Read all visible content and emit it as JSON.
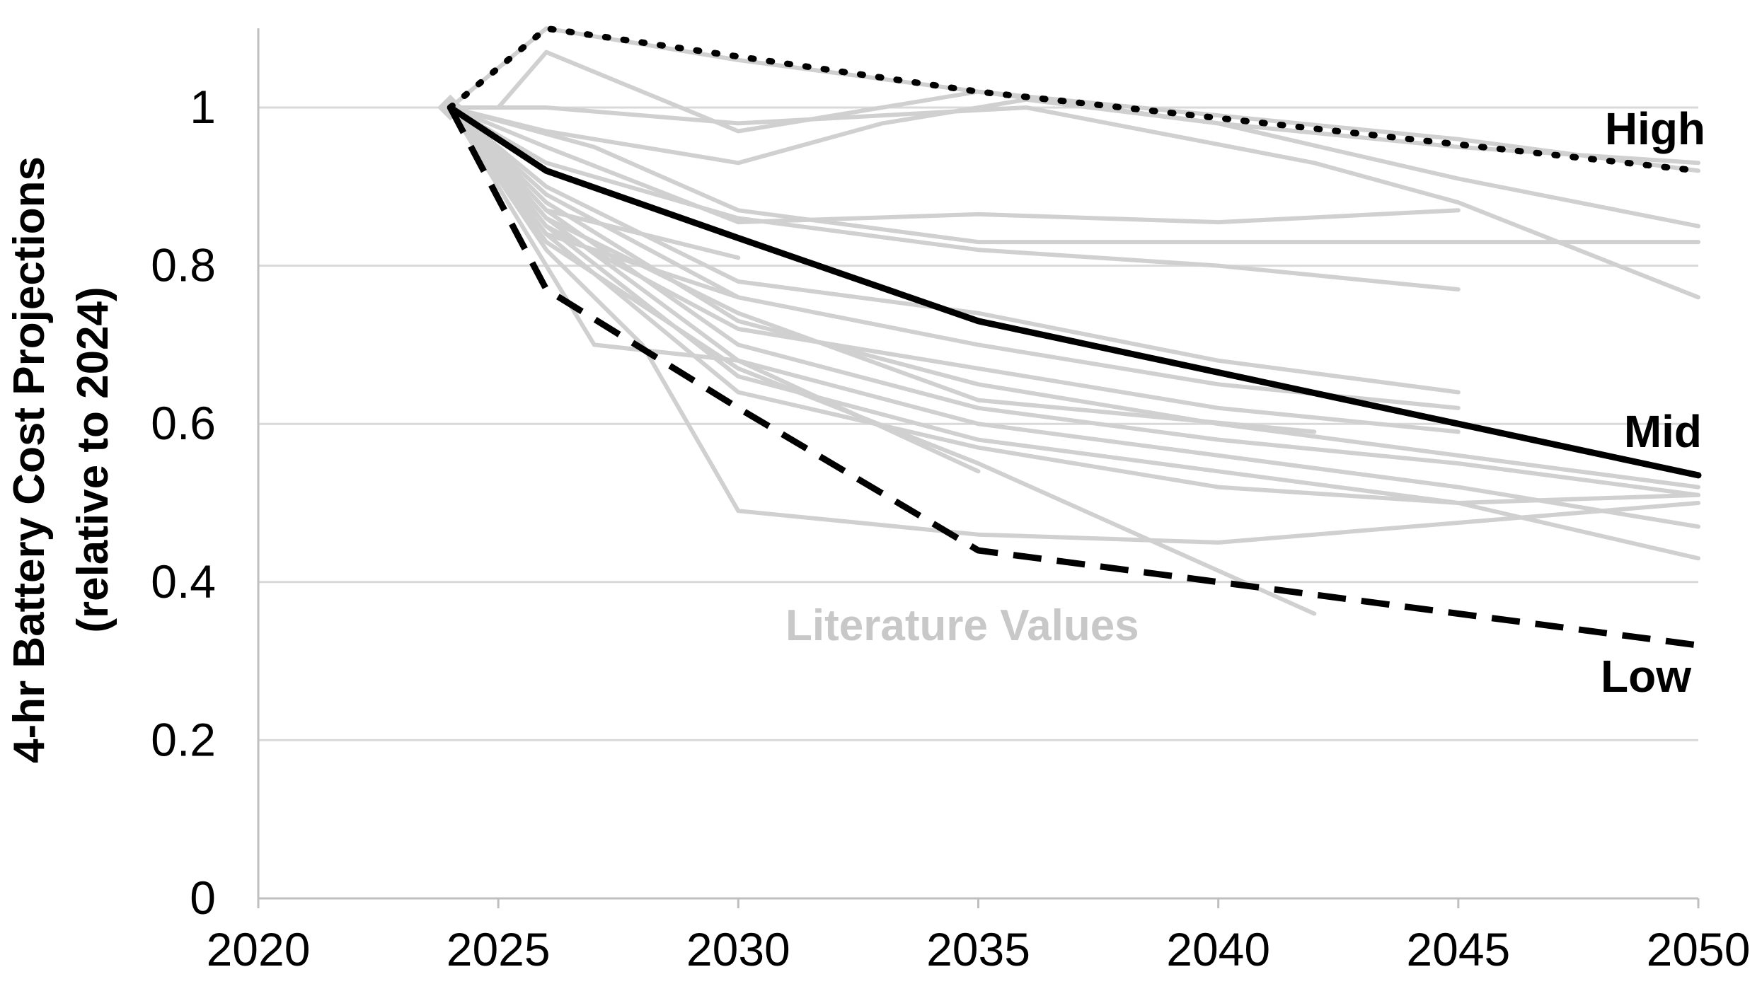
{
  "chart_data": {
    "type": "line",
    "title": "",
    "ylabel_line1": "4-hr Battery Cost Projections",
    "ylabel_line2": "(relative to 2024)",
    "xlabel": "",
    "xlim": [
      2020,
      2050
    ],
    "ylim": [
      0,
      1
    ],
    "x_ticks": [
      "2020",
      "2025",
      "2030",
      "2035",
      "2040",
      "2045",
      "2050"
    ],
    "y_ticks": [
      "0",
      "0.2",
      "0.4",
      "0.6",
      "0.8",
      "1"
    ],
    "x_tick_values": [
      2020,
      2025,
      2030,
      2035,
      2040,
      2045,
      2050
    ],
    "y_tick_values": [
      0,
      0.2,
      0.4,
      0.6,
      0.8,
      1.0
    ],
    "grid": "horizontal",
    "annotation": "Literature Values",
    "colors": {
      "literature": "#d0d0d0",
      "projection": "#000000",
      "grid": "#d9d9d9",
      "axis": "#bfbfbf"
    },
    "series": [
      {
        "name": "High",
        "style": "dotted",
        "x": [
          2024,
          2026,
          2035,
          2050
        ],
        "y": [
          1.0,
          1.1,
          1.02,
          0.92
        ]
      },
      {
        "name": "Mid",
        "style": "solid",
        "x": [
          2024,
          2026,
          2030,
          2035,
          2040,
          2050
        ],
        "y": [
          1.0,
          0.92,
          0.835,
          0.73,
          0.665,
          0.535
        ]
      },
      {
        "name": "Low",
        "style": "dashed",
        "x": [
          2024,
          2026,
          2030,
          2035,
          2040,
          2050
        ],
        "y": [
          1.0,
          0.77,
          0.62,
          0.44,
          0.4,
          0.32
        ]
      }
    ],
    "literature_series": [
      {
        "x": [
          2024,
          2026,
          2030,
          2035,
          2040,
          2045,
          2050
        ],
        "y": [
          1.0,
          1.1,
          1.06,
          1.02,
          0.99,
          0.96,
          0.92
        ]
      },
      {
        "x": [
          2024,
          2025,
          2026,
          2030,
          2035,
          2040,
          2045,
          2050
        ],
        "y": [
          1.0,
          1.0,
          1.07,
          0.97,
          1.02,
          0.98,
          0.91,
          0.85
        ]
      },
      {
        "x": [
          2024,
          2026,
          2030,
          2036,
          2042,
          2045,
          2050
        ],
        "y": [
          1.0,
          1.0,
          0.98,
          1.0,
          0.93,
          0.88,
          0.76
        ]
      },
      {
        "x": [
          2024,
          2026,
          2030,
          2033,
          2036,
          2040,
          2045,
          2050
        ],
        "y": [
          1.0,
          0.97,
          0.93,
          0.98,
          1.01,
          0.98,
          0.95,
          0.93
        ]
      },
      {
        "x": [
          2024,
          2027,
          2030,
          2035,
          2040,
          2045,
          2050
        ],
        "y": [
          1.0,
          0.95,
          0.87,
          0.83,
          0.83,
          0.83,
          0.83
        ]
      },
      {
        "x": [
          2024,
          2026,
          2030,
          2035,
          2040,
          2045
        ],
        "y": [
          1.0,
          0.95,
          0.855,
          0.865,
          0.855,
          0.87
        ]
      },
      {
        "x": [
          2024,
          2026,
          2030,
          2035,
          2040,
          2045
        ],
        "y": [
          1.0,
          0.93,
          0.86,
          0.82,
          0.8,
          0.77
        ]
      },
      {
        "x": [
          2024,
          2026,
          2030,
          2035,
          2040,
          2045
        ],
        "y": [
          1.0,
          0.9,
          0.78,
          0.74,
          0.68,
          0.64
        ]
      },
      {
        "x": [
          2024,
          2026,
          2030,
          2035,
          2040,
          2045
        ],
        "y": [
          1.0,
          0.89,
          0.76,
          0.7,
          0.65,
          0.62
        ]
      },
      {
        "x": [
          2024,
          2026,
          2030,
          2035,
          2040,
          2045,
          2050
        ],
        "y": [
          1.0,
          0.88,
          0.73,
          0.65,
          0.6,
          0.56,
          0.52
        ]
      },
      {
        "x": [
          2024,
          2026,
          2030,
          2035,
          2040,
          2045,
          2050
        ],
        "y": [
          1.0,
          0.87,
          0.7,
          0.62,
          0.58,
          0.55,
          0.51
        ]
      },
      {
        "x": [
          2024,
          2026,
          2030,
          2035,
          2040,
          2045,
          2050
        ],
        "y": [
          1.0,
          0.86,
          0.68,
          0.6,
          0.56,
          0.52,
          0.47
        ]
      },
      {
        "x": [
          2024,
          2026,
          2030,
          2035,
          2040,
          2045,
          2050
        ],
        "y": [
          1.0,
          0.85,
          0.66,
          0.58,
          0.54,
          0.5,
          0.43
        ]
      },
      {
        "x": [
          2024,
          2026,
          2030,
          2035,
          2040,
          2045,
          2050
        ],
        "y": [
          1.0,
          0.84,
          0.64,
          0.57,
          0.52,
          0.5,
          0.51
        ]
      },
      {
        "x": [
          2024,
          2026,
          2030,
          2035,
          2040,
          2045
        ],
        "y": [
          1.0,
          0.85,
          0.72,
          0.67,
          0.62,
          0.59
        ]
      },
      {
        "x": [
          2024,
          2026,
          2030,
          2035,
          2042
        ],
        "y": [
          1.0,
          0.83,
          0.67,
          0.55,
          0.36
        ]
      },
      {
        "x": [
          2024,
          2026,
          2027,
          2030,
          2035
        ],
        "y": [
          1.0,
          0.8,
          0.7,
          0.68,
          0.54
        ]
      },
      {
        "x": [
          2024,
          2026,
          2028,
          2030,
          2035,
          2040,
          2050
        ],
        "y": [
          1.0,
          0.82,
          0.7,
          0.49,
          0.46,
          0.45,
          0.5
        ]
      },
      {
        "x": [
          2024,
          2026,
          2030,
          2035,
          2042
        ],
        "y": [
          1.0,
          0.86,
          0.74,
          0.63,
          0.59
        ]
      },
      {
        "x": [
          2024,
          2026,
          2030
        ],
        "y": [
          1.0,
          0.87,
          0.81
        ]
      },
      {
        "x": [
          2024,
          2026,
          2030
        ],
        "y": [
          1.0,
          0.84,
          0.76
        ]
      }
    ]
  }
}
